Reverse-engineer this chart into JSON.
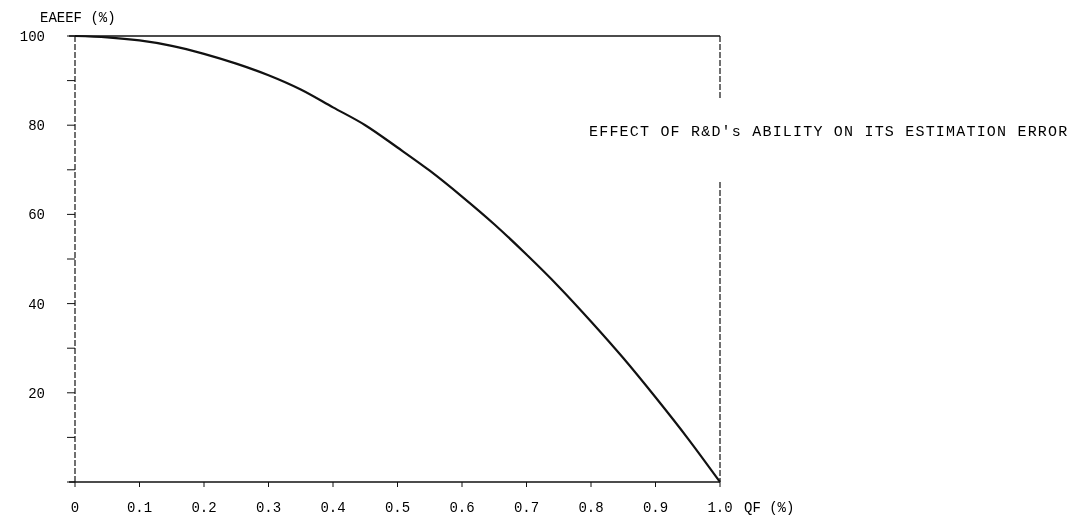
{
  "chart_data": {
    "type": "line",
    "xlabel": "QF (%)",
    "ylabel": "EAEEF (%)",
    "annotations": [
      "EFFECT OF R&D's ABILITY ON ITS ESTIMATION ERROR"
    ],
    "x": [
      0,
      0.05,
      0.1,
      0.15,
      0.2,
      0.25,
      0.3,
      0.35,
      0.4,
      0.45,
      0.5,
      0.55,
      0.6,
      0.65,
      0.7,
      0.75,
      0.8,
      0.85,
      0.9,
      0.95,
      1.0
    ],
    "series": [
      {
        "color": "#111111",
        "values": [
          100,
          99.7,
          99,
          97.8,
          96,
          93.8,
          91.2,
          88,
          84,
          80,
          75,
          69.8,
          64,
          57.8,
          51,
          43.8,
          36,
          27.8,
          19,
          9.8,
          0
        ]
      }
    ],
    "xlim": [
      0,
      1.0
    ],
    "ylim": [
      0,
      100
    ],
    "xticks": [
      0,
      0.1,
      0.2,
      0.3,
      0.4,
      0.5,
      0.6,
      0.7,
      0.8,
      0.9,
      "1.0"
    ],
    "yticks": [
      {
        "value": 0,
        "label": null
      },
      {
        "value": 10,
        "label": null
      },
      20,
      {
        "value": 30,
        "label": null
      },
      40,
      {
        "value": 50,
        "label": null
      },
      60,
      {
        "value": 70,
        "label": null
      },
      80,
      {
        "value": 90,
        "label": null
      },
      100
    ],
    "marker": "none",
    "line_style": "solid"
  }
}
